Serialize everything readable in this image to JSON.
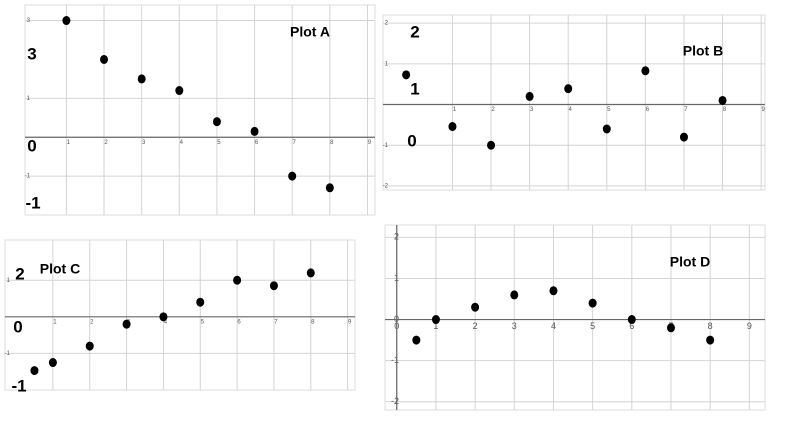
{
  "chart_data": [
    {
      "type": "scatter",
      "title": "Plot A",
      "annotations": [
        "3",
        "0",
        "-1"
      ],
      "x": [
        1,
        2,
        3,
        4,
        5,
        6,
        7,
        8
      ],
      "values": [
        3.0,
        2.0,
        1.5,
        1.2,
        0.4,
        0.15,
        -1.0,
        -1.3
      ],
      "xlim": [
        -0.1,
        9.2
      ],
      "ylim": [
        -2,
        3.4
      ],
      "xticks": [
        1,
        2,
        3,
        4,
        5,
        6,
        7,
        8,
        9
      ],
      "yticks": [
        -1,
        1,
        3
      ],
      "color": "#000000"
    },
    {
      "type": "scatter",
      "title": "Plot B",
      "annotations": [
        "2",
        "1",
        "0"
      ],
      "x": [
        -0.2,
        1,
        2,
        3,
        4,
        5,
        6,
        7,
        8
      ],
      "values": [
        0.73,
        -0.54,
        -1.0,
        0.2,
        0.39,
        -0.6,
        0.83,
        -0.8,
        0.1
      ],
      "xlim": [
        -0.8,
        9.1
      ],
      "ylim": [
        -2.1,
        2.2
      ],
      "xticks": [
        1,
        2,
        3,
        4,
        5,
        6,
        7,
        8,
        9
      ],
      "yticks": [
        -2,
        -1,
        1,
        2
      ],
      "color": "#000000"
    },
    {
      "type": "scatter",
      "title": "Plot C",
      "annotations": [
        "2",
        "0",
        "-1"
      ],
      "x": [
        0.5,
        1,
        2,
        3,
        4,
        5,
        6,
        7,
        8
      ],
      "values": [
        -1.47,
        -1.25,
        -0.8,
        -0.2,
        0,
        0.4,
        1.0,
        0.85,
        1.2
      ],
      "xlim": [
        -0.3,
        9.2
      ],
      "ylim": [
        -2,
        2.1
      ],
      "xticks": [
        1,
        2,
        3,
        4,
        5,
        6,
        7,
        8,
        9
      ],
      "yticks": [
        -1,
        1
      ],
      "color": "#000000"
    },
    {
      "type": "scatter",
      "title": "Plot D",
      "x": [
        0.5,
        1,
        2,
        3,
        4,
        5,
        6,
        7,
        8
      ],
      "values": [
        -0.5,
        0,
        0.3,
        0.6,
        0.7,
        0.4,
        0,
        -0.2,
        -0.5
      ],
      "xlim": [
        -0.3,
        9.4
      ],
      "ylim": [
        -2.2,
        2.3
      ],
      "xticks": [
        0,
        1,
        2,
        3,
        4,
        5,
        6,
        7,
        8,
        9
      ],
      "yticks": [
        -2,
        -1,
        0,
        1,
        2
      ],
      "color": "#000000"
    }
  ]
}
